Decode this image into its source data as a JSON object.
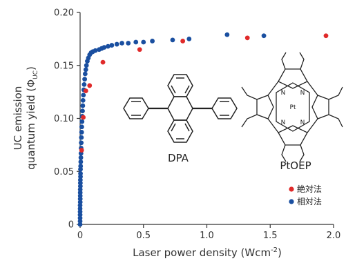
{
  "chart_data": {
    "type": "scatter",
    "xlabel_main": "Laser power density (Wcm",
    "xlabel_sup": "-2",
    "xlabel_tail": ")",
    "ylabel_line1": "UC emission",
    "ylabel_line2_main": "quantum yield (Φ",
    "ylabel_line2_sub": "UC",
    "ylabel_line2_tail": ")",
    "xlim": [
      0,
      2.0
    ],
    "ylim": [
      0,
      0.2
    ],
    "xticks": [
      "0",
      "0.5",
      "1.0",
      "1.5",
      "2.0"
    ],
    "yticks": [
      "0",
      "0.05",
      "0.10",
      "0.15",
      "0.20"
    ],
    "grid": false,
    "legend_position": "bottom-right",
    "series": [
      {
        "name": "絶対法",
        "color": "#e02a2a",
        "points": [
          [
            0.012,
            0.07
          ],
          [
            0.025,
            0.101
          ],
          [
            0.045,
            0.126
          ],
          [
            0.075,
            0.131
          ],
          [
            0.18,
            0.153
          ],
          [
            0.47,
            0.165
          ],
          [
            0.81,
            0.173
          ],
          [
            1.32,
            0.176
          ],
          [
            1.94,
            0.178
          ]
        ]
      },
      {
        "name": "相対法",
        "color": "#1a4fa0",
        "points": [
          [
            0.0,
            0.0
          ],
          [
            0.0,
            0.003
          ],
          [
            0.0,
            0.006
          ],
          [
            0.0,
            0.009
          ],
          [
            0.0,
            0.012
          ],
          [
            0.0,
            0.015
          ],
          [
            0.0,
            0.018
          ],
          [
            0.001,
            0.021
          ],
          [
            0.001,
            0.024
          ],
          [
            0.001,
            0.027
          ],
          [
            0.001,
            0.03
          ],
          [
            0.001,
            0.033
          ],
          [
            0.002,
            0.036
          ],
          [
            0.002,
            0.039
          ],
          [
            0.002,
            0.042
          ],
          [
            0.003,
            0.045
          ],
          [
            0.003,
            0.048
          ],
          [
            0.003,
            0.052
          ],
          [
            0.004,
            0.055
          ],
          [
            0.005,
            0.059
          ],
          [
            0.006,
            0.063
          ],
          [
            0.007,
            0.067
          ],
          [
            0.008,
            0.072
          ],
          [
            0.009,
            0.077
          ],
          [
            0.01,
            0.082
          ],
          [
            0.012,
            0.087
          ],
          [
            0.013,
            0.092
          ],
          [
            0.015,
            0.097
          ],
          [
            0.017,
            0.102
          ],
          [
            0.019,
            0.107
          ],
          [
            0.021,
            0.112
          ],
          [
            0.023,
            0.117
          ],
          [
            0.026,
            0.122
          ],
          [
            0.029,
            0.127
          ],
          [
            0.032,
            0.132
          ],
          [
            0.036,
            0.137
          ],
          [
            0.04,
            0.142
          ],
          [
            0.045,
            0.146
          ],
          [
            0.05,
            0.15
          ],
          [
            0.057,
            0.154
          ],
          [
            0.065,
            0.157
          ],
          [
            0.075,
            0.16
          ],
          [
            0.087,
            0.162
          ],
          [
            0.1,
            0.163
          ],
          [
            0.12,
            0.164
          ],
          [
            0.15,
            0.165
          ],
          [
            0.17,
            0.166
          ],
          [
            0.19,
            0.167
          ],
          [
            0.22,
            0.168
          ],
          [
            0.25,
            0.169
          ],
          [
            0.29,
            0.17
          ],
          [
            0.33,
            0.171
          ],
          [
            0.38,
            0.171
          ],
          [
            0.44,
            0.172
          ],
          [
            0.5,
            0.172
          ],
          [
            0.57,
            0.173
          ],
          [
            0.73,
            0.174
          ],
          [
            0.86,
            0.175
          ],
          [
            1.16,
            0.179
          ],
          [
            1.45,
            0.178
          ]
        ]
      }
    ]
  },
  "annotations": {
    "dpa_label": "DPA",
    "ptoep_label": "PtOEP",
    "pt_atom": "Pt",
    "n_atom": "N"
  },
  "legend": {
    "items": [
      {
        "label": "絶対法",
        "color": "#e02a2a"
      },
      {
        "label": "相対法",
        "color": "#1a4fa0"
      }
    ]
  }
}
